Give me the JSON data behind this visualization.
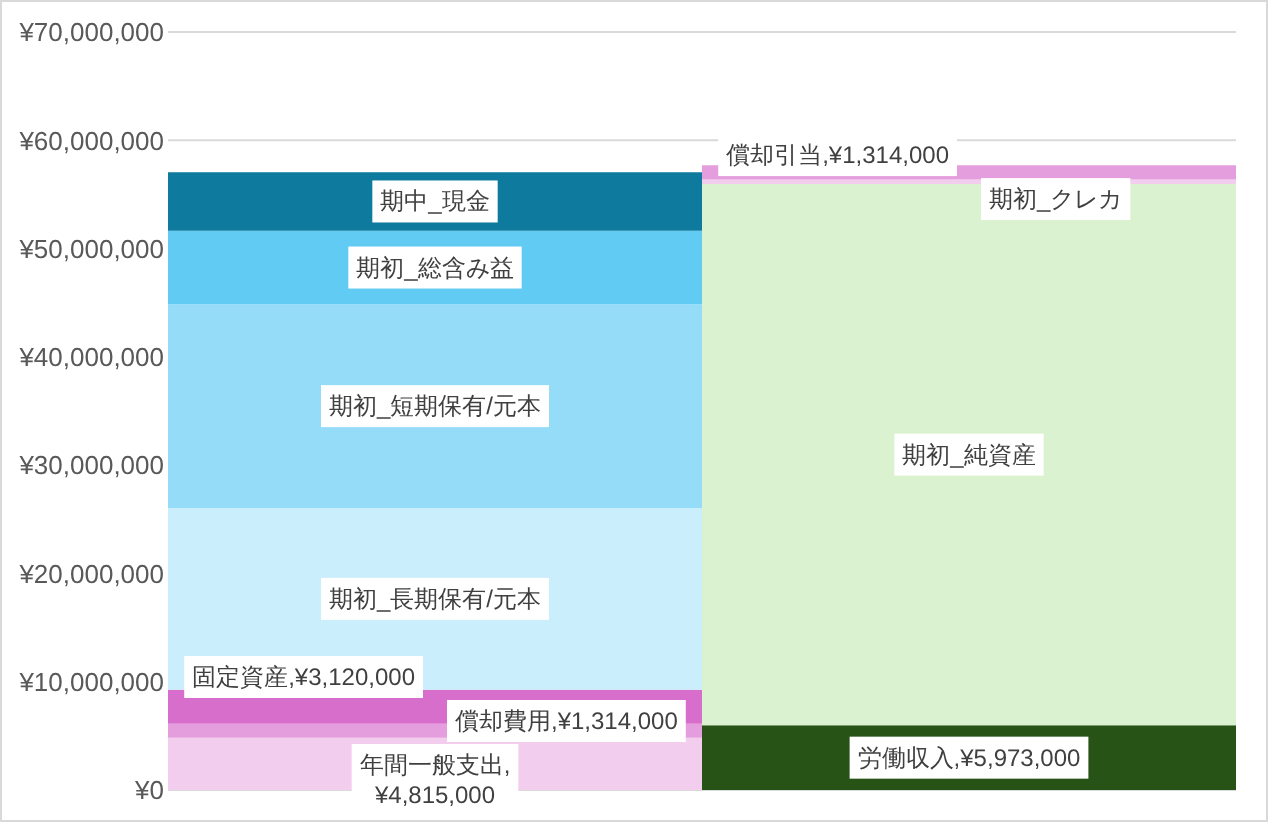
{
  "chart_data": {
    "type": "bar",
    "stacked": true,
    "categories": [
      null,
      null
    ],
    "series": [
      {
        "name": "年間一般支出",
        "color": "#f2cdee",
        "values": [
          4815000,
          null
        ],
        "value_labels": [
          ",¥4,815,000",
          null
        ]
      },
      {
        "name": "償却費用",
        "color": "#e59edd",
        "values": [
          1314000,
          null
        ],
        "value_labels": [
          ",¥1,314,000",
          null
        ]
      },
      {
        "name": "固定資産",
        "color": "#d86ecc",
        "values": [
          3120000,
          null
        ],
        "value_labels": [
          ",¥3,120,000",
          null
        ]
      },
      {
        "name": "期初_長期保有/元本",
        "color": "#caeefb",
        "values": [
          16800000,
          null
        ]
      },
      {
        "name": "期初_短期保有/元本",
        "color": "#94dcf8",
        "values": [
          18800000,
          null
        ]
      },
      {
        "name": "期初_総含み益",
        "color": "#61cbf3",
        "values": [
          6800000,
          null
        ]
      },
      {
        "name": "期中_現金",
        "color": "#0e7a9e",
        "values": [
          5400000,
          null
        ]
      },
      {
        "name": "労働収入",
        "color": "#275317",
        "values": [
          null,
          5973000
        ],
        "value_labels": [
          null,
          ",¥5,973,000"
        ]
      },
      {
        "name": "期初_純資産",
        "color": "#daf2d0",
        "values": [
          null,
          50000000
        ]
      },
      {
        "name": "期初_クレカ",
        "color": "#f2cdee",
        "values": [
          null,
          400000
        ]
      },
      {
        "name": "償却引当",
        "color": "#e59edd",
        "values": [
          null,
          1314000
        ],
        "value_labels": [
          null,
          ",¥1,314,000"
        ]
      }
    ],
    "ylim": [
      0,
      70000000
    ],
    "yticks": [
      {
        "value": 0,
        "label": "¥0"
      },
      {
        "value": 10000000,
        "label": "¥10,000,000"
      },
      {
        "value": 20000000,
        "label": "¥20,000,000"
      },
      {
        "value": 30000000,
        "label": "¥30,000,000"
      },
      {
        "value": 40000000,
        "label": "¥40,000,000"
      },
      {
        "value": 50000000,
        "label": "¥50,000,000"
      },
      {
        "value": 60000000,
        "label": "¥60,000,000"
      },
      {
        "value": 70000000,
        "label": "¥70,000,000"
      }
    ],
    "grid": "y",
    "tick_labels": "y"
  }
}
